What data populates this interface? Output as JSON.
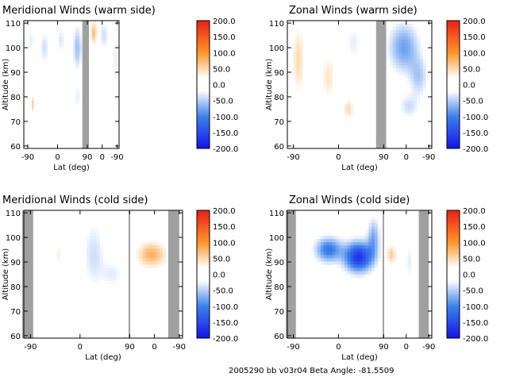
{
  "caption": "2005290 bb v03r04   Beta Angle: -81.5509",
  "chart_data": [
    {
      "type": "heatmap",
      "title": "Meridional Winds (warm side)",
      "xlabel": "Lat (deg)",
      "ylabel": "Altitude (km)",
      "x_tick_labels": [
        "-90",
        "0",
        "90",
        "0",
        "-90"
      ],
      "y_ticks": [
        60,
        70,
        80,
        90,
        100,
        110
      ],
      "ylim": [
        59,
        111
      ],
      "colorbar_ticks": [
        "200.0",
        "150.0",
        "100.0",
        "50.0",
        "0.0",
        "-50.0",
        "-100.0",
        "-150.0",
        "-200.0"
      ],
      "clim": [
        -200,
        200
      ],
      "no_data_bands": [
        [
          75,
          95
        ]
      ],
      "features": [
        {
          "x": -80,
          "y": 103,
          "v": -30,
          "sx": 12,
          "sy": 6
        },
        {
          "x": -40,
          "y": 100,
          "v": -40,
          "sx": 14,
          "sy": 7
        },
        {
          "x": 10,
          "y": 103,
          "v": -35,
          "sx": 12,
          "sy": 6
        },
        {
          "x": 60,
          "y": 100,
          "v": -60,
          "sx": 14,
          "sy": 9
        },
        {
          "x": -75,
          "y": 77,
          "v": 60,
          "sx": 6,
          "sy": 3
        },
        {
          "x": 60,
          "y": 80,
          "v": -30,
          "sx": 12,
          "sy": 6
        },
        {
          "x": 110,
          "y": 106,
          "v": 70,
          "sx": 10,
          "sy": 5
        },
        {
          "x": 140,
          "y": 105,
          "v": -40,
          "sx": 16,
          "sy": 6
        },
        {
          "x": 175,
          "y": 95,
          "v": -30,
          "sx": 10,
          "sy": 12
        }
      ]
    },
    {
      "type": "heatmap",
      "title": "Zonal Winds (warm side)",
      "xlabel": "Lat (deg)",
      "ylabel": "Altitude (km)",
      "x_tick_labels": [
        "-90",
        "0",
        "90",
        "0",
        "-90"
      ],
      "y_ticks": [
        60,
        70,
        80,
        90,
        100,
        110
      ],
      "ylim": [
        59,
        111
      ],
      "colorbar_ticks": [
        "200.0",
        "150.0",
        "100.0",
        "50.0",
        "0.0",
        "-50.0",
        "-100.0",
        "-150.0",
        "-200.0"
      ],
      "clim": [
        -200,
        200
      ],
      "no_data_bands": [
        [
          75,
          95
        ]
      ],
      "features": [
        {
          "x": -80,
          "y": 95,
          "v": 50,
          "sx": 12,
          "sy": 14
        },
        {
          "x": -20,
          "y": 88,
          "v": 40,
          "sx": 14,
          "sy": 10
        },
        {
          "x": 30,
          "y": 102,
          "v": -30,
          "sx": 18,
          "sy": 8
        },
        {
          "x": 130,
          "y": 100,
          "v": -80,
          "sx": 30,
          "sy": 10
        },
        {
          "x": 160,
          "y": 88,
          "v": -50,
          "sx": 18,
          "sy": 8
        },
        {
          "x": 140,
          "y": 76,
          "v": -40,
          "sx": 20,
          "sy": 5
        },
        {
          "x": 20,
          "y": 75,
          "v": 50,
          "sx": 10,
          "sy": 4
        }
      ]
    },
    {
      "type": "heatmap",
      "title": "Meridional Winds (cold side)",
      "xlabel": "Lat (deg)",
      "ylabel": "Altitude (km)",
      "x_tick_labels": [
        "-90",
        "0",
        "90",
        "0",
        "-90"
      ],
      "y_ticks": [
        60,
        70,
        80,
        90,
        100,
        110
      ],
      "ylim": [
        59,
        111
      ],
      "colorbar_ticks": [
        "200.0",
        "150.0",
        "100.0",
        "50.0",
        "0.0",
        "-50.0",
        "-100.0",
        "-150.0",
        "-200.0"
      ],
      "clim": [
        -200,
        200
      ],
      "no_data_bands": [
        [
          -105,
          -85
        ],
        [
          160,
          180
        ],
        [
          88,
          91
        ]
      ],
      "features": [
        {
          "x": 25,
          "y": 93,
          "v": -40,
          "sx": 20,
          "sy": 14
        },
        {
          "x": -40,
          "y": 93,
          "v": 30,
          "sx": 6,
          "sy": 5
        },
        {
          "x": 130,
          "y": 93,
          "v": 80,
          "sx": 26,
          "sy": 5
        },
        {
          "x": 60,
          "y": 85,
          "v": -30,
          "sx": 20,
          "sy": 6
        }
      ]
    },
    {
      "type": "heatmap",
      "title": "Zonal Winds (cold side)",
      "xlabel": "Lat (deg)",
      "ylabel": "Altitude (km)",
      "x_tick_labels": [
        "-90",
        "0",
        "90",
        "0",
        "-90"
      ],
      "y_ticks": [
        60,
        70,
        80,
        90,
        100,
        110
      ],
      "ylim": [
        59,
        111
      ],
      "colorbar_ticks": [
        "200.0",
        "150.0",
        "100.0",
        "50.0",
        "0.0",
        "-50.0",
        "-100.0",
        "-150.0",
        "-200.0"
      ],
      "clim": [
        -200,
        200
      ],
      "no_data_bands": [
        [
          -105,
          -85
        ],
        [
          160,
          180
        ],
        [
          88,
          91
        ]
      ],
      "features": [
        {
          "x": 40,
          "y": 92,
          "v": -170,
          "sx": 28,
          "sy": 6
        },
        {
          "x": -20,
          "y": 95,
          "v": -110,
          "sx": 26,
          "sy": 5
        },
        {
          "x": 70,
          "y": 100,
          "v": -70,
          "sx": 12,
          "sy": 8
        },
        {
          "x": 105,
          "y": 93,
          "v": 60,
          "sx": 10,
          "sy": 4
        },
        {
          "x": 140,
          "y": 90,
          "v": -30,
          "sx": 10,
          "sy": 8
        }
      ]
    }
  ]
}
